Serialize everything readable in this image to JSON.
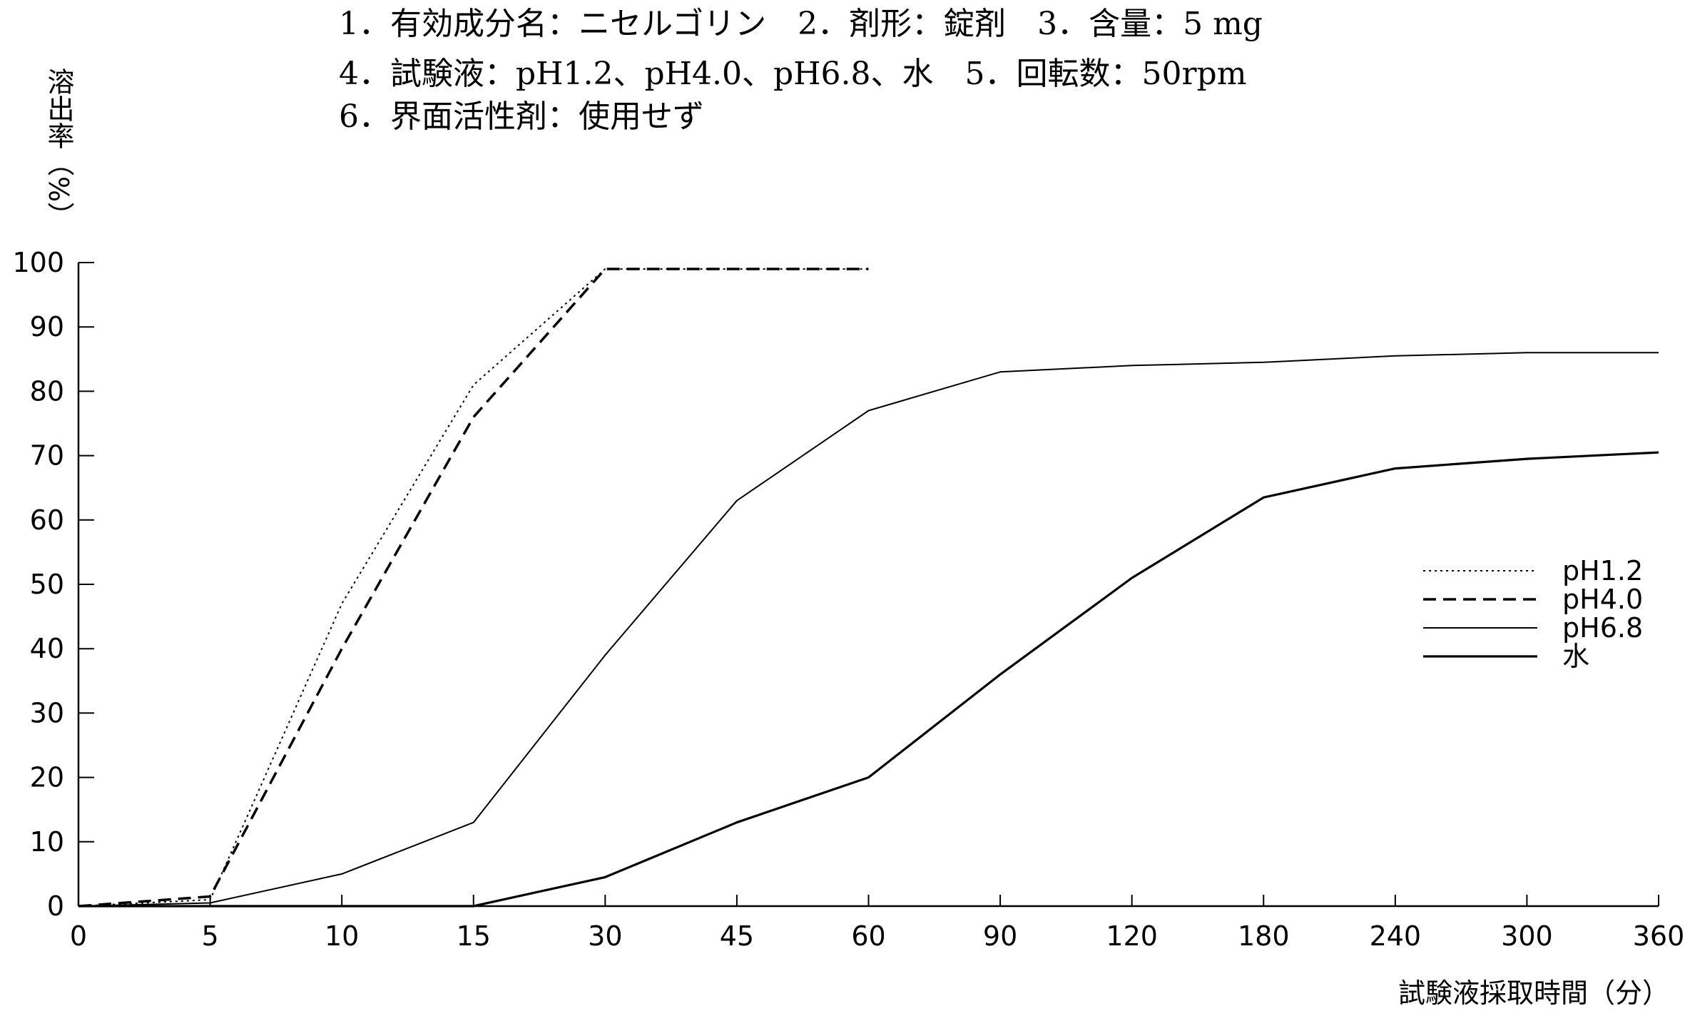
{
  "chart_data": {
    "type": "line",
    "header_lines": [
      "1．有効成分名：ニセルゴリン　2．剤形：錠剤　3．含量：5 mg",
      "4．試験液：pH1.2、pH4.0、pH6.8、水　5．回転数：50rpm",
      "6．界面活性剤：使用せず"
    ],
    "ylabel": "溶出率（%）",
    "xlabel": "試験液採取時間（分）",
    "categories": [
      "0",
      "5",
      "10",
      "15",
      "30",
      "45",
      "60",
      "90",
      "120",
      "180",
      "240",
      "300",
      "360"
    ],
    "yticks": [
      "0",
      "10",
      "20",
      "30",
      "40",
      "50",
      "60",
      "70",
      "80",
      "90",
      "100"
    ],
    "ylim": [
      0,
      100
    ],
    "grid": false,
    "legend_position": "right",
    "series": [
      {
        "name": "pH1.2",
        "style": "dotted",
        "values": [
          0,
          1,
          47,
          81,
          99,
          99,
          99,
          null,
          null,
          null,
          null,
          null,
          null
        ]
      },
      {
        "name": "pH4.0",
        "style": "dashed",
        "values": [
          0,
          1.5,
          40,
          76,
          99,
          99,
          99,
          null,
          null,
          null,
          null,
          null,
          null
        ]
      },
      {
        "name": "pH6.8",
        "style": "solid",
        "values": [
          0,
          0.5,
          5,
          13,
          39,
          63,
          77,
          83,
          84,
          84.5,
          85.5,
          86,
          86
        ]
      },
      {
        "name": "水",
        "style": "solid",
        "values": [
          0,
          0,
          0,
          0,
          4.5,
          13,
          20,
          36,
          51,
          63.5,
          68,
          69.5,
          70.5
        ]
      }
    ],
    "colors": {
      "line": "#000000",
      "axis": "#000000"
    }
  }
}
